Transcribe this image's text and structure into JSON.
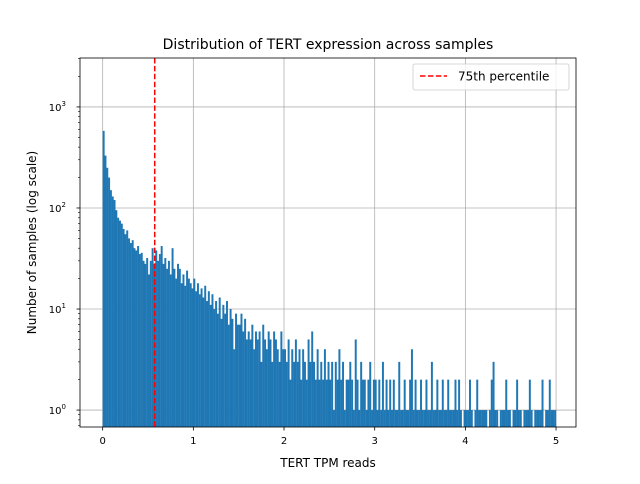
{
  "chart_data": {
    "type": "bar",
    "title": "Distribution of TERT expression across samples",
    "xlabel": "TERT TPM reads",
    "ylabel": "Number of samples (log scale)",
    "xlim": [
      -0.25,
      5.22
    ],
    "ylim": [
      0.68,
      3050
    ],
    "yscale": "log",
    "grid": true,
    "x_ticks": [
      "0",
      "1",
      "2",
      "3",
      "4",
      "5"
    ],
    "y_ticks": [
      {
        "base": "10",
        "exp": "0"
      },
      {
        "base": "10",
        "exp": "1"
      },
      {
        "base": "10",
        "exp": "2"
      },
      {
        "base": "10",
        "exp": "3"
      }
    ],
    "bin_start": 0,
    "bin_width": 0.02,
    "bar_color": "#1f77b4",
    "counts": [
      580,
      330,
      250,
      200,
      150,
      130,
      120,
      95,
      80,
      75,
      70,
      62,
      55,
      60,
      50,
      45,
      48,
      40,
      38,
      42,
      35,
      36,
      30,
      28,
      32,
      22,
      30,
      40,
      28,
      38,
      30,
      35,
      42,
      28,
      32,
      25,
      30,
      22,
      40,
      25,
      20,
      28,
      25,
      18,
      22,
      17,
      24,
      20,
      18,
      16,
      20,
      15,
      18,
      14,
      16,
      13,
      17,
      12,
      15,
      11,
      14,
      10,
      12,
      9,
      13,
      8,
      11,
      9,
      12,
      7,
      10,
      8,
      4,
      9,
      7,
      7,
      9,
      6,
      8,
      5,
      6,
      5,
      7,
      4,
      6,
      5,
      6,
      3,
      7,
      5,
      4,
      6,
      5,
      3,
      6,
      5,
      4,
      3,
      6,
      4,
      4,
      3,
      5,
      2,
      4,
      3,
      5,
      3,
      4,
      2,
      4,
      3,
      2,
      5,
      3,
      6,
      3,
      2,
      4,
      2,
      3,
      2,
      4,
      2,
      3,
      2,
      3,
      1,
      3,
      2,
      4,
      2,
      3,
      1,
      2,
      2,
      3,
      2,
      1,
      5,
      2,
      1,
      3,
      2,
      2,
      1,
      2,
      3,
      1,
      2,
      2,
      1,
      2,
      1,
      3,
      1,
      2,
      1,
      2,
      1,
      2,
      1,
      1,
      3,
      1,
      1,
      2,
      1,
      1,
      2,
      4,
      1,
      2,
      1,
      1,
      2,
      1,
      1,
      2,
      1,
      1,
      3,
      1,
      1,
      2,
      1,
      1,
      2,
      1,
      1,
      2,
      1,
      1,
      1,
      2,
      1,
      2,
      1,
      0,
      1,
      1,
      1,
      2,
      1,
      0,
      1,
      2,
      1,
      1,
      1,
      1,
      1,
      0,
      1,
      2,
      3,
      1,
      1,
      0,
      1,
      1,
      1,
      2,
      1,
      1,
      0,
      1,
      1,
      2,
      1,
      1,
      0,
      1,
      1,
      1,
      2,
      1,
      0,
      1,
      1,
      1,
      1,
      2,
      0,
      1,
      1,
      2,
      1,
      1,
      1
    ],
    "reference_line": {
      "x": 0.574,
      "label": "75th percentile",
      "color": "#ff0000",
      "style": "dashed"
    },
    "legend_placement": "top-right"
  }
}
